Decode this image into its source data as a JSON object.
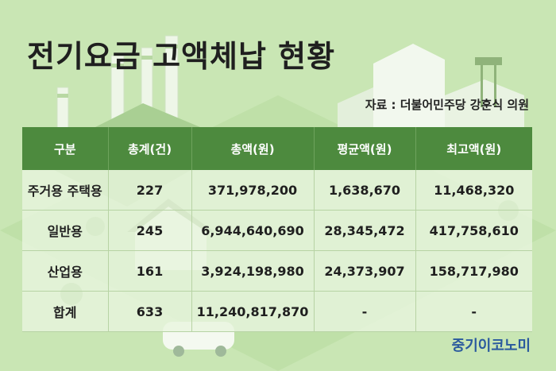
{
  "title": "전기요금 고액체납 현황",
  "source": "자료 : 더불어민주당 강훈식 의원",
  "table": {
    "headers": [
      "구분",
      "총계(건)",
      "총액(원)",
      "평균액(원)",
      "최고액(원)"
    ],
    "rows": [
      {
        "category": "주거용 주택용",
        "count": "227",
        "total": "371,978,200",
        "average": "1,638,670",
        "max": "11,468,320"
      },
      {
        "category": "일반용",
        "count": "245",
        "total": "6,944,640,690",
        "average": "28,345,472",
        "max": "417,758,610"
      },
      {
        "category": "산업용",
        "count": "161",
        "total": "3,924,198,980",
        "average": "24,373,907",
        "max": "158,717,980"
      },
      {
        "category": "합계",
        "count": "633",
        "total": "11,240,817,870",
        "average": "-",
        "max": "-"
      }
    ]
  },
  "logo": "중기이코노미",
  "colors": {
    "background": "#c9e6b4",
    "header": "#4d8a3e",
    "row": "#e9f5de",
    "logo": "#2a5a9e"
  }
}
